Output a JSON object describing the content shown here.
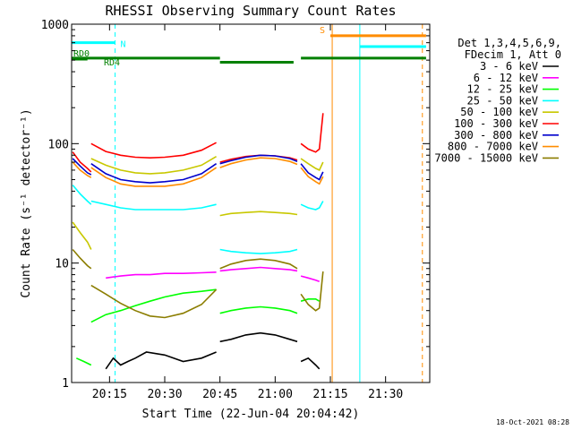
{
  "chart_data": {
    "type": "line",
    "title": "RHESSI Observing Summary Count Rates",
    "xlabel": "Start Time (22-Jun-04 20:04:42)",
    "ylabel": "Count Rate (s⁻¹ detector⁻¹)",
    "y_scale": "log",
    "ylim": [
      1,
      1000
    ],
    "xlim": [
      "20:04:42",
      "21:42:00"
    ],
    "x_ticks": [
      "20:15",
      "20:30",
      "20:45",
      "21:00",
      "21:15",
      "21:30"
    ],
    "y_ticks": [
      "1",
      "10",
      "100",
      "1000"
    ],
    "legend_header": [
      "Det 1,3,4,5,6,9,",
      "FDecim 1, Att 0"
    ],
    "legend_position": "right",
    "series": [
      {
        "name": "3 - 6 keV",
        "color": "#000000",
        "segments": [
          {
            "x": [
              "20:14",
              "20:16",
              "20:18",
              "20:20",
              "20:22",
              "20:25",
              "20:30",
              "20:35",
              "20:40",
              "20:44"
            ],
            "values": [
              1.3,
              1.6,
              1.4,
              1.5,
              1.6,
              1.8,
              1.7,
              1.5,
              1.6,
              1.8
            ]
          },
          {
            "x": [
              "20:45",
              "20:48",
              "20:52",
              "20:56",
              "21:00",
              "21:04",
              "21:06"
            ],
            "values": [
              2.2,
              2.3,
              2.5,
              2.6,
              2.5,
              2.3,
              2.2
            ]
          },
          {
            "x": [
              "21:07",
              "21:09",
              "21:11",
              "21:12"
            ],
            "values": [
              1.5,
              1.6,
              1.4,
              1.3
            ]
          }
        ]
      },
      {
        "name": "6 - 12 keV",
        "color": "#ff00ff",
        "segments": [
          {
            "x": [
              "20:14",
              "20:18",
              "20:22",
              "20:26",
              "20:30",
              "20:35",
              "20:40",
              "20:44"
            ],
            "values": [
              7.5,
              7.8,
              8.0,
              8.0,
              8.2,
              8.2,
              8.3,
              8.4
            ]
          },
          {
            "x": [
              "20:45",
              "20:48",
              "20:52",
              "20:56",
              "21:00",
              "21:04",
              "21:06"
            ],
            "values": [
              8.6,
              8.8,
              9.0,
              9.2,
              9.0,
              8.8,
              8.6
            ]
          },
          {
            "x": [
              "21:07",
              "21:09",
              "21:11",
              "21:12"
            ],
            "values": [
              7.8,
              7.5,
              7.2,
              7.0
            ]
          }
        ]
      },
      {
        "name": "12 - 25 keV",
        "color": "#00ff00",
        "segments": [
          {
            "x": [
              "20:06",
              "20:08",
              "20:10"
            ],
            "values": [
              1.6,
              1.5,
              1.4
            ]
          },
          {
            "x": [
              "20:10",
              "20:14",
              "20:18",
              "20:22",
              "20:26",
              "20:30",
              "20:35",
              "20:40",
              "20:44"
            ],
            "values": [
              3.2,
              3.7,
              4.0,
              4.4,
              4.8,
              5.2,
              5.6,
              5.8,
              6.0
            ]
          },
          {
            "x": [
              "20:45",
              "20:48",
              "20:52",
              "20:56",
              "21:00",
              "21:04",
              "21:06"
            ],
            "values": [
              3.8,
              4.0,
              4.2,
              4.3,
              4.2,
              4.0,
              3.8
            ]
          },
          {
            "x": [
              "21:07",
              "21:09",
              "21:11",
              "21:12"
            ],
            "values": [
              4.8,
              5.0,
              5.0,
              4.8
            ]
          }
        ]
      },
      {
        "name": "25 - 50 keV",
        "color": "#00ffff",
        "segments": [
          {
            "x": [
              "20:05",
              "20:07",
              "20:09",
              "20:10"
            ],
            "values": [
              45,
              38,
              33,
              31
            ]
          },
          {
            "x": [
              "20:10",
              "20:14",
              "20:18",
              "20:22",
              "20:26",
              "20:30",
              "20:35",
              "20:40",
              "20:44"
            ],
            "values": [
              33,
              31,
              29,
              28,
              28,
              28,
              28,
              29,
              31
            ]
          },
          {
            "x": [
              "20:45",
              "20:48",
              "20:52",
              "20:56",
              "21:00",
              "21:04",
              "21:06"
            ],
            "values": [
              13,
              12.5,
              12.2,
              12,
              12.2,
              12.5,
              13
            ]
          },
          {
            "x": [
              "21:07",
              "21:09",
              "21:11",
              "21:12",
              "21:13"
            ],
            "values": [
              31,
              29,
              28,
              29,
              33
            ]
          }
        ]
      },
      {
        "name": "50 - 100 keV",
        "color": "#c8c800",
        "segments": [
          {
            "x": [
              "20:05",
              "20:07",
              "20:09",
              "20:10"
            ],
            "values": [
              22,
              18,
              15,
              13
            ]
          },
          {
            "x": [
              "20:10",
              "20:14",
              "20:18",
              "20:22",
              "20:26",
              "20:30",
              "20:35",
              "20:40",
              "20:44"
            ],
            "values": [
              75,
              66,
              60,
              57,
              56,
              57,
              60,
              66,
              78
            ]
          },
          {
            "x": [
              "20:45",
              "20:48",
              "20:52",
              "20:56",
              "21:00",
              "21:04",
              "21:06"
            ],
            "values": [
              25,
              26,
              26.5,
              27,
              26.5,
              26,
              25.5
            ]
          },
          {
            "x": [
              "21:07",
              "21:09",
              "21:11",
              "21:12",
              "21:13"
            ],
            "values": [
              75,
              68,
              62,
              60,
              70
            ]
          }
        ]
      },
      {
        "name": "100 - 300 keV",
        "color": "#ff0000",
        "segments": [
          {
            "x": [
              "20:05",
              "20:07",
              "20:09",
              "20:10"
            ],
            "values": [
              85,
              70,
              62,
              58
            ]
          },
          {
            "x": [
              "20:10",
              "20:14",
              "20:18",
              "20:22",
              "20:26",
              "20:30",
              "20:35",
              "20:40",
              "20:44"
            ],
            "values": [
              100,
              86,
              80,
              77,
              76,
              77,
              80,
              88,
              102
            ]
          },
          {
            "x": [
              "20:45",
              "20:48",
              "20:52",
              "20:56",
              "21:00",
              "21:04",
              "21:06"
            ],
            "values": [
              70,
              74,
              78,
              80,
              79,
              76,
              73
            ]
          },
          {
            "x": [
              "21:07",
              "21:09",
              "21:11",
              "21:12",
              "21:13"
            ],
            "values": [
              100,
              90,
              85,
              90,
              180
            ]
          }
        ]
      },
      {
        "name": "300 - 800 keV",
        "color": "#0000cc",
        "segments": [
          {
            "x": [
              "20:05",
              "20:07",
              "20:09",
              "20:10"
            ],
            "values": [
              75,
              65,
              57,
              55
            ]
          },
          {
            "x": [
              "20:10",
              "20:14",
              "20:18",
              "20:22",
              "20:26",
              "20:30",
              "20:35",
              "20:40",
              "20:44"
            ],
            "values": [
              68,
              56,
              50,
              48,
              47,
              48,
              50,
              56,
              68
            ]
          },
          {
            "x": [
              "20:45",
              "20:48",
              "20:52",
              "20:56",
              "21:00",
              "21:04",
              "21:06"
            ],
            "values": [
              68,
              72,
              77,
              80,
              79,
              75,
              71
            ]
          },
          {
            "x": [
              "21:07",
              "21:09",
              "21:11",
              "21:12",
              "21:13"
            ],
            "values": [
              68,
              57,
              52,
              50,
              58
            ]
          }
        ]
      },
      {
        "name": "800 - 7000 keV",
        "color": "#ff8c00",
        "segments": [
          {
            "x": [
              "20:05",
              "20:07",
              "20:09",
              "20:10"
            ],
            "values": [
              70,
              60,
              54,
              52
            ]
          },
          {
            "x": [
              "20:10",
              "20:14",
              "20:18",
              "20:22",
              "20:26",
              "20:30",
              "20:35",
              "20:40",
              "20:44"
            ],
            "values": [
              63,
              52,
              46,
              44,
              44,
              44,
              46,
              52,
              63
            ]
          },
          {
            "x": [
              "20:45",
              "20:48",
              "20:52",
              "20:56",
              "21:00",
              "21:04",
              "21:06"
            ],
            "values": [
              63,
              68,
              73,
              76,
              75,
              71,
              67
            ]
          },
          {
            "x": [
              "21:07",
              "21:09",
              "21:11",
              "21:12",
              "21:13"
            ],
            "values": [
              63,
              53,
              48,
              46,
              53
            ]
          }
        ]
      },
      {
        "name": "7000 - 15000 keV",
        "color": "#8b7d00",
        "segments": [
          {
            "x": [
              "20:05",
              "20:07",
              "20:09",
              "20:10"
            ],
            "values": [
              13,
              11,
              9.5,
              9
            ]
          },
          {
            "x": [
              "20:10",
              "20:14",
              "20:18",
              "20:22",
              "20:26",
              "20:30",
              "20:35",
              "20:40",
              "20:44"
            ],
            "values": [
              6.5,
              5.5,
              4.6,
              4.0,
              3.6,
              3.5,
              3.8,
              4.5,
              6.0
            ]
          },
          {
            "x": [
              "20:45",
              "20:48",
              "20:52",
              "20:56",
              "21:00",
              "21:04",
              "21:06"
            ],
            "values": [
              9,
              9.8,
              10.5,
              10.8,
              10.5,
              9.8,
              9.0
            ]
          },
          {
            "x": [
              "21:07",
              "21:09",
              "21:11",
              "21:12",
              "21:13"
            ],
            "values": [
              5.5,
              4.5,
              4.0,
              4.2,
              8.5
            ]
          }
        ]
      }
    ],
    "status_bars": [
      {
        "label": "N",
        "color": "#00ffff",
        "y": 700,
        "segments": [
          [
            "20:04:42",
            "20:16:30"
          ]
        ]
      },
      {
        "label": "S",
        "color": "#ff8c00",
        "y": 800,
        "segments": [
          [
            "21:15",
            "21:41"
          ]
        ]
      },
      {
        "label": "",
        "color": "#00ffff",
        "y": 650,
        "segments": [
          [
            "21:23",
            "21:41"
          ]
        ]
      },
      {
        "label": "RD0",
        "color": "#008000",
        "y": 510,
        "segments": [
          [
            "20:04:42",
            "20:09:00"
          ]
        ]
      },
      {
        "label": "RD4",
        "color": "#008000",
        "y": 520,
        "segments": [
          [
            "20:04:42",
            "20:45:00"
          ],
          [
            "21:07:00",
            "21:41:00"
          ]
        ]
      },
      {
        "label": "",
        "color": "#008000",
        "y": 480,
        "segments": [
          [
            "20:45:00",
            "21:05:00"
          ]
        ]
      }
    ],
    "vlines": [
      {
        "x": "20:04:42",
        "color": "#00ffff",
        "style": "solid"
      },
      {
        "x": "20:16:30",
        "color": "#00ffff",
        "style": "dashed"
      },
      {
        "x": "21:15:30",
        "color": "#ff8c00",
        "style": "solid"
      },
      {
        "x": "21:23:00",
        "color": "#00ffff",
        "style": "solid"
      },
      {
        "x": "21:40:00",
        "color": "#ff8c00",
        "style": "dashed"
      }
    ],
    "grid": false,
    "footer": "18-Oct-2021 08:28"
  }
}
